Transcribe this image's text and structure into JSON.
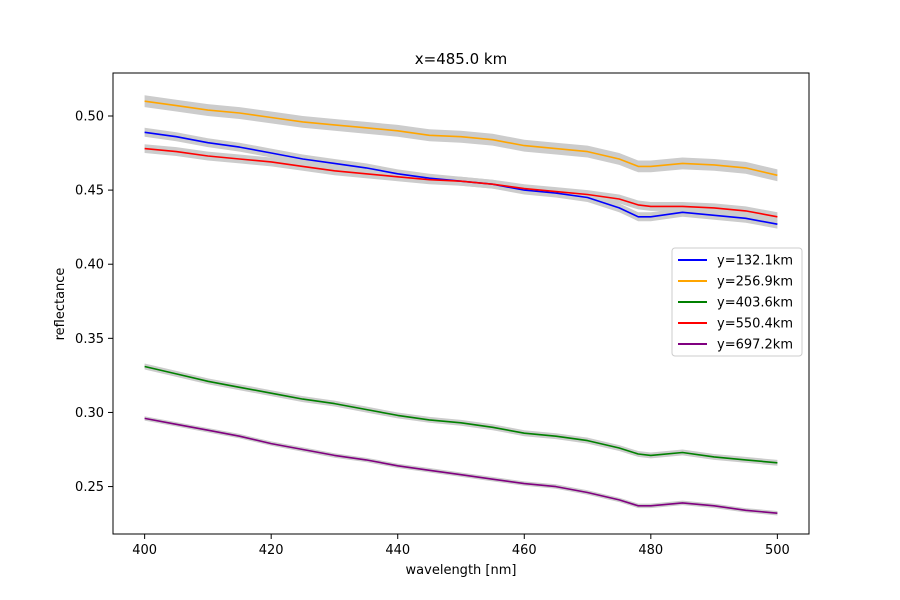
{
  "chart_data": {
    "type": "line",
    "title": "x=485.0 km",
    "xlabel": "wavelength [nm]",
    "ylabel": "reflectance",
    "xlim": [
      395,
      505
    ],
    "ylim": [
      0.218,
      0.529
    ],
    "xticks": [
      400,
      420,
      440,
      460,
      480,
      500
    ],
    "xtick_labels": [
      "400",
      "420",
      "440",
      "460",
      "480",
      "500"
    ],
    "yticks": [
      0.25,
      0.3,
      0.35,
      0.4,
      0.45,
      0.5
    ],
    "ytick_labels": [
      "0.25",
      "0.30",
      "0.35",
      "0.40",
      "0.45",
      "0.50"
    ],
    "grid": false,
    "legend_position": "center-right",
    "uncertainty_band_color": "#cccccc",
    "x": [
      400,
      405,
      410,
      415,
      420,
      425,
      430,
      435,
      440,
      445,
      450,
      455,
      460,
      465,
      470,
      475,
      478,
      480,
      485,
      490,
      495,
      500
    ],
    "series": [
      {
        "name": "y=132.1km",
        "color": "#0000ff",
        "band": 0.003,
        "values": [
          0.489,
          0.486,
          0.482,
          0.479,
          0.475,
          0.471,
          0.468,
          0.465,
          0.461,
          0.458,
          0.456,
          0.454,
          0.45,
          0.448,
          0.445,
          0.438,
          0.432,
          0.432,
          0.435,
          0.433,
          0.431,
          0.427
        ]
      },
      {
        "name": "y=256.9km",
        "color": "#ffa500",
        "band": 0.004,
        "values": [
          0.51,
          0.507,
          0.504,
          0.502,
          0.499,
          0.496,
          0.494,
          0.492,
          0.49,
          0.487,
          0.486,
          0.484,
          0.48,
          0.478,
          0.476,
          0.471,
          0.466,
          0.466,
          0.468,
          0.467,
          0.465,
          0.46
        ]
      },
      {
        "name": "y=403.6km",
        "color": "#008000",
        "band": 0.002,
        "values": [
          0.331,
          0.326,
          0.321,
          0.317,
          0.313,
          0.309,
          0.306,
          0.302,
          0.298,
          0.295,
          0.293,
          0.29,
          0.286,
          0.284,
          0.281,
          0.276,
          0.272,
          0.271,
          0.273,
          0.27,
          0.268,
          0.266
        ]
      },
      {
        "name": "y=550.4km",
        "color": "#ff0000",
        "band": 0.003,
        "values": [
          0.478,
          0.476,
          0.473,
          0.471,
          0.469,
          0.466,
          0.463,
          0.461,
          0.459,
          0.457,
          0.456,
          0.454,
          0.451,
          0.449,
          0.447,
          0.444,
          0.44,
          0.439,
          0.439,
          0.438,
          0.436,
          0.432
        ]
      },
      {
        "name": "y=697.2km",
        "color": "#800080",
        "band": 0.0015,
        "values": [
          0.296,
          0.292,
          0.288,
          0.284,
          0.279,
          0.275,
          0.271,
          0.268,
          0.264,
          0.261,
          0.258,
          0.255,
          0.252,
          0.25,
          0.246,
          0.241,
          0.237,
          0.237,
          0.239,
          0.237,
          0.234,
          0.232
        ]
      }
    ]
  }
}
